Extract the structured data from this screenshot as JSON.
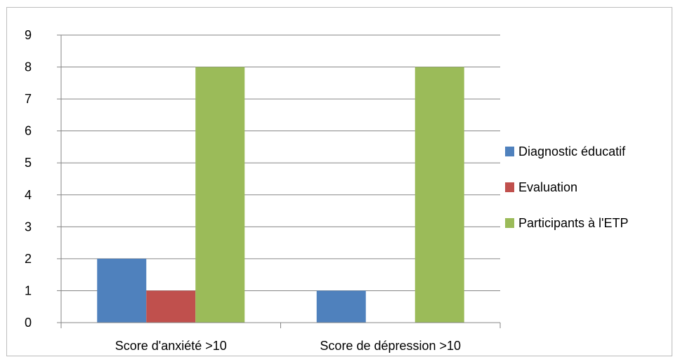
{
  "chart_data": {
    "type": "bar",
    "categories": [
      "Score d'anxiété >10",
      "Score de dépression >10"
    ],
    "series": [
      {
        "name": "Diagnostic éducatif",
        "color": "#4f81bd",
        "values": [
          2,
          1
        ]
      },
      {
        "name": "Evaluation",
        "color": "#c0504d",
        "values": [
          1,
          0
        ]
      },
      {
        "name": "Participants à l'ETP",
        "color": "#9bbb59",
        "values": [
          8,
          8
        ]
      }
    ],
    "ylim": [
      0,
      9
    ],
    "yticks": [
      0,
      1,
      2,
      3,
      4,
      5,
      6,
      7,
      8,
      9
    ],
    "grid": true,
    "legend_position": "right",
    "title": "",
    "xlabel": "",
    "ylabel": ""
  }
}
